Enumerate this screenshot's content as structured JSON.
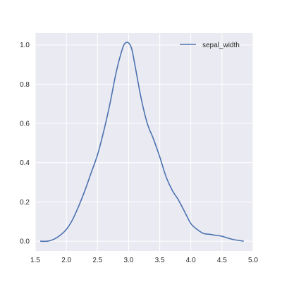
{
  "chart_data": {
    "type": "line",
    "title": "",
    "xlabel": "",
    "ylabel": "",
    "xlim": [
      1.5,
      5.0
    ],
    "ylim": [
      -0.05,
      1.06
    ],
    "xticks": [
      1.5,
      2.0,
      2.5,
      3.0,
      3.5,
      4.0,
      4.5,
      5.0
    ],
    "xtick_labels": [
      "1.5",
      "2.0",
      "2.5",
      "3.0",
      "3.5",
      "4.0",
      "4.5",
      "5.0"
    ],
    "yticks": [
      0.0,
      0.2,
      0.4,
      0.6,
      0.8,
      1.0
    ],
    "ytick_labels": [
      "0.0",
      "0.2",
      "0.4",
      "0.6",
      "0.8",
      "1.0"
    ],
    "grid": true,
    "legend_position": "top-right",
    "colors": {
      "axes_background": "#eaeaf2",
      "grid": "#ffffff",
      "line": "#4c72b0",
      "text": "#262626"
    },
    "series": [
      {
        "name": "sepal_width",
        "x": [
          1.58,
          1.7,
          1.8,
          1.9,
          2.0,
          2.1,
          2.2,
          2.3,
          2.4,
          2.5,
          2.6,
          2.7,
          2.8,
          2.9,
          2.95,
          3.0,
          3.05,
          3.1,
          3.2,
          3.3,
          3.4,
          3.5,
          3.6,
          3.7,
          3.8,
          3.9,
          4.0,
          4.1,
          4.2,
          4.3,
          4.4,
          4.5,
          4.6,
          4.7,
          4.85
        ],
        "y": [
          0.0,
          0.0,
          0.01,
          0.03,
          0.06,
          0.11,
          0.18,
          0.26,
          0.35,
          0.44,
          0.56,
          0.7,
          0.86,
          0.98,
          1.01,
          1.01,
          0.98,
          0.9,
          0.73,
          0.6,
          0.52,
          0.43,
          0.33,
          0.26,
          0.21,
          0.15,
          0.09,
          0.06,
          0.04,
          0.035,
          0.03,
          0.025,
          0.015,
          0.007,
          0.0
        ]
      }
    ]
  }
}
